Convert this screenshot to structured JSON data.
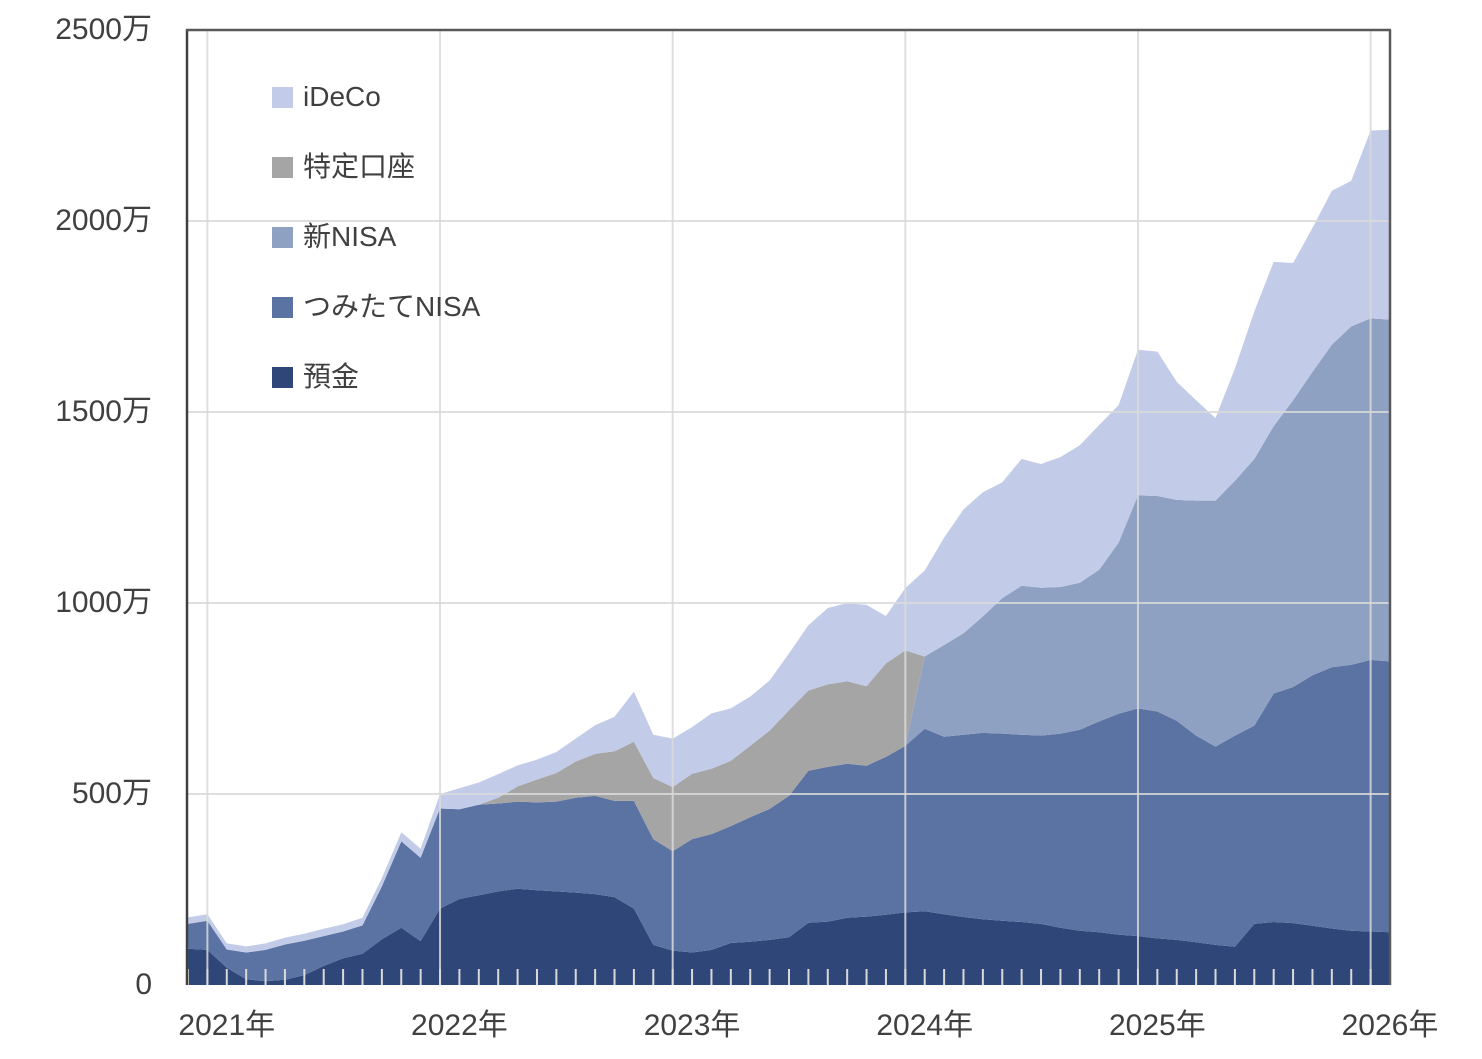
{
  "chart_data": {
    "type": "area",
    "stacked": true,
    "x_unit": "month",
    "y_unit": "万",
    "ylim": [
      0,
      2500
    ],
    "grid": "on",
    "legend_position": "top-left-inside",
    "x": [
      "2020-12",
      "2021-01",
      "2021-02",
      "2021-03",
      "2021-04",
      "2021-05",
      "2021-06",
      "2021-07",
      "2021-08",
      "2021-09",
      "2021-10",
      "2021-11",
      "2021-12",
      "2022-01",
      "2022-02",
      "2022-03",
      "2022-04",
      "2022-05",
      "2022-06",
      "2022-07",
      "2022-08",
      "2022-09",
      "2022-10",
      "2022-11",
      "2022-12",
      "2023-01",
      "2023-02",
      "2023-03",
      "2023-04",
      "2023-05",
      "2023-06",
      "2023-07",
      "2023-08",
      "2023-09",
      "2023-10",
      "2023-11",
      "2023-12",
      "2024-01",
      "2024-02",
      "2024-03",
      "2024-04",
      "2024-05",
      "2024-06",
      "2024-07",
      "2024-08",
      "2024-09",
      "2024-10",
      "2024-11",
      "2024-12",
      "2025-01",
      "2025-02",
      "2025-03",
      "2025-04",
      "2025-05",
      "2025-06",
      "2025-07",
      "2025-08",
      "2025-09",
      "2025-10",
      "2025-11",
      "2025-12",
      "2026-01",
      "2026-02"
    ],
    "series": [
      {
        "name": "yokin",
        "label": "預金",
        "color": "#2f4678",
        "values": [
          95,
          92,
          45,
          15,
          10,
          14,
          26,
          50,
          70,
          82,
          120,
          150,
          115,
          200,
          225,
          235,
          245,
          252,
          248,
          245,
          242,
          238,
          230,
          200,
          105,
          90,
          85,
          92,
          110,
          113,
          118,
          125,
          163,
          166,
          176,
          179,
          184,
          190,
          193,
          185,
          178,
          172,
          168,
          165,
          160,
          150,
          142,
          138,
          132,
          128,
          122,
          118,
          112,
          105,
          100,
          160,
          165,
          162,
          155,
          148,
          142,
          140,
          138
        ]
      },
      {
        "name": "tsumitate_nisa",
        "label": "つみたてNISA",
        "color": "#5b73a3",
        "values": [
          65,
          76,
          48,
          70,
          82,
          92,
          90,
          78,
          70,
          74,
          138,
          226,
          218,
          262,
          235,
          237,
          230,
          228,
          230,
          235,
          248,
          257,
          252,
          282,
          277,
          260,
          297,
          303,
          306,
          326,
          343,
          370,
          398,
          405,
          403,
          395,
          413,
          436,
          478,
          465,
          477,
          488,
          490,
          490,
          493,
          508,
          526,
          552,
          578,
          596,
          594,
          574,
          541,
          519,
          553,
          519,
          598,
          618,
          656,
          684,
          696,
          711,
          709
        ]
      },
      {
        "name": "shin_nisa",
        "label": "新NISA",
        "color": "#8fa1c2",
        "values": [
          0,
          0,
          0,
          0,
          0,
          0,
          0,
          0,
          0,
          0,
          0,
          0,
          0,
          0,
          0,
          0,
          0,
          0,
          0,
          0,
          0,
          0,
          0,
          0,
          0,
          0,
          0,
          0,
          0,
          0,
          0,
          0,
          0,
          0,
          0,
          0,
          0,
          0,
          189,
          240,
          266,
          305,
          355,
          390,
          387,
          384,
          385,
          397,
          448,
          558,
          564,
          578,
          615,
          644,
          667,
          698,
          700,
          751,
          794,
          844,
          886,
          894,
          895
        ]
      },
      {
        "name": "tokutei_kouza",
        "label": "特定口座",
        "color": "#a5a5a5",
        "values": [
          0,
          0,
          0,
          0,
          0,
          0,
          0,
          0,
          0,
          0,
          0,
          0,
          0,
          0,
          0,
          0,
          15,
          40,
          60,
          75,
          95,
          110,
          130,
          155,
          160,
          168,
          171,
          171,
          171,
          187,
          205,
          224,
          210,
          216,
          216,
          208,
          245,
          250,
          0,
          0,
          0,
          0,
          0,
          0,
          0,
          0,
          0,
          0,
          0,
          0,
          0,
          0,
          0,
          0,
          0,
          0,
          0,
          0,
          0,
          0,
          0,
          0,
          0
        ]
      },
      {
        "name": "ideco",
        "label": "iDeCo",
        "color": "#c2cce8",
        "values": [
          17,
          17,
          16,
          16,
          17,
          18,
          18,
          19,
          19,
          20,
          22,
          24,
          24,
          38,
          55,
          58,
          62,
          55,
          52,
          55,
          60,
          75,
          90,
          131,
          113,
          127,
          122,
          145,
          137,
          129,
          131,
          149,
          171,
          200,
          205,
          213,
          124,
          163,
          225,
          281,
          324,
          325,
          303,
          332,
          324,
          340,
          360,
          379,
          360,
          381,
          378,
          309,
          263,
          216,
          294,
          386,
          430,
          359,
          377,
          403,
          381,
          492,
          497
        ]
      }
    ]
  },
  "axes": {
    "y": {
      "ticks": [
        {
          "value": 0,
          "label": "0"
        },
        {
          "value": 500,
          "label": "500万"
        },
        {
          "value": 1000,
          "label": "1000万"
        },
        {
          "value": 1500,
          "label": "1500万"
        },
        {
          "value": 2000,
          "label": "2000万"
        },
        {
          "value": 2500,
          "label": "2500万"
        }
      ]
    },
    "x": {
      "year_gridline_indices": [
        1,
        13,
        25,
        37,
        49,
        61
      ],
      "year_labels": [
        {
          "index": 2,
          "label": "2021年"
        },
        {
          "index": 14,
          "label": "2022年"
        },
        {
          "index": 26,
          "label": "2023年"
        },
        {
          "index": 38,
          "label": "2024年"
        },
        {
          "index": 50,
          "label": "2025年"
        },
        {
          "index": 62,
          "label": "2026年"
        }
      ]
    }
  },
  "legend": {
    "items": [
      {
        "name": "ideco",
        "label": "iDeCo",
        "color": "#c2cce8"
      },
      {
        "name": "tokutei_kouza",
        "label": "特定口座",
        "color": "#a5a5a5"
      },
      {
        "name": "shin_nisa",
        "label": "新NISA",
        "color": "#8fa1c2"
      },
      {
        "name": "tsumitate_nisa",
        "label": "つみたてNISA",
        "color": "#5b73a3"
      },
      {
        "name": "yokin",
        "label": "預金",
        "color": "#2f4678"
      }
    ]
  },
  "style": {
    "background": "#ffffff",
    "gridline_color": "#d9d9d9",
    "tick_color": "#d9d9d9",
    "plot_border_color": "#595959",
    "axis_line_color": "#404040",
    "text_color": "#404040"
  }
}
